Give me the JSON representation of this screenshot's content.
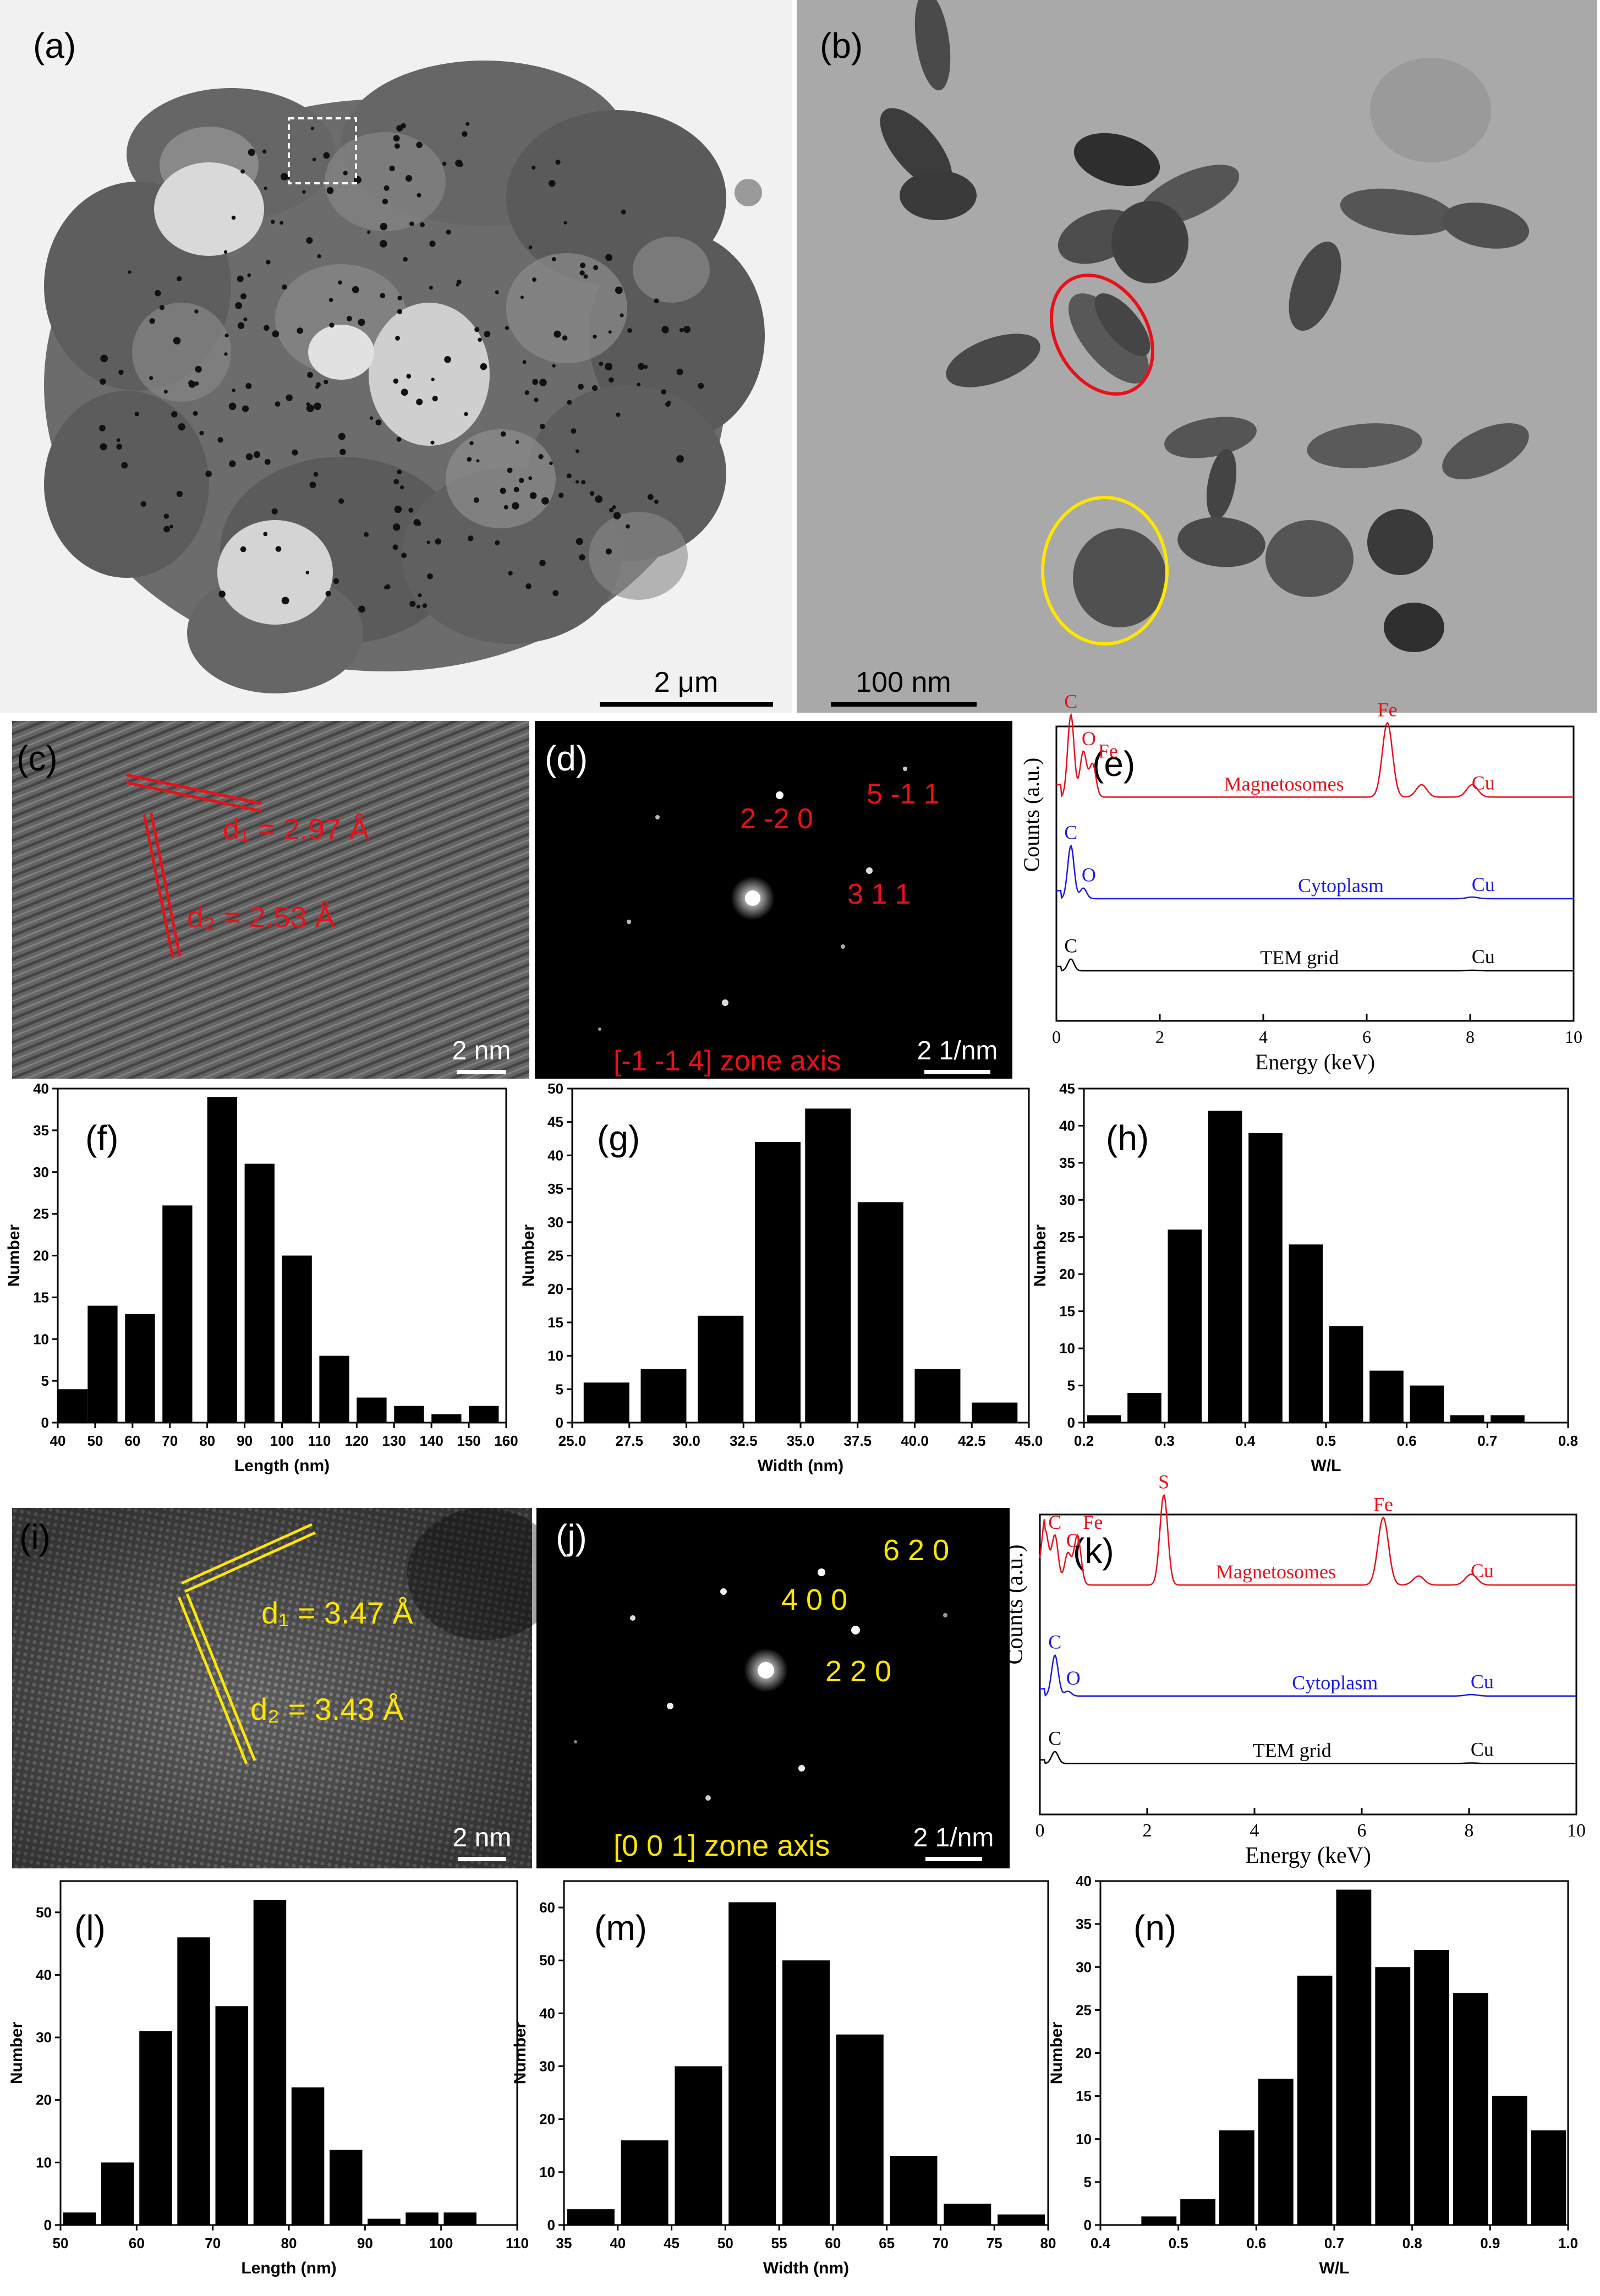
{
  "panels": {
    "a": {
      "label": "(a)",
      "scale_bar": "2 μm"
    },
    "b": {
      "label": "(b)",
      "scale_bar": "100 nm"
    },
    "c": {
      "label": "(c)",
      "d1": "d₁ = 2.97 Å",
      "d2": "d₂ = 2.53 Å",
      "scale_bar": "2 nm"
    },
    "d": {
      "label": "(d)",
      "spots": [
        "2 -2 0",
        "5 -1 1",
        "3 1 1"
      ],
      "zone_axis": "[-1 -1 4] zone axis",
      "scale_bar": "2 1/nm"
    },
    "e": {
      "label": "(e)"
    },
    "f": {
      "label": "(f)"
    },
    "g": {
      "label": "(g)"
    },
    "h": {
      "label": "(h)"
    },
    "i": {
      "label": "(i)",
      "d1": "d₁ = 3.47 Å",
      "d2": "d₂ = 3.43 Å",
      "scale_bar": "2 nm"
    },
    "j": {
      "label": "(j)",
      "spots": [
        "6 2 0",
        "4 0 0",
        "2 2 0"
      ],
      "zone_axis": "[0 0 1] zone axis",
      "scale_bar": "2 1/nm"
    },
    "k": {
      "label": "(k)"
    },
    "l": {
      "label": "(l)"
    },
    "m": {
      "label": "(m)"
    },
    "n": {
      "label": "(n)"
    }
  },
  "colors": {
    "red": "#e8101a",
    "yellow": "#ffe600",
    "blue": "#1a1ae0",
    "black": "#000000"
  },
  "chart_data": [
    {
      "id": "e",
      "type": "line",
      "xlabel": "Energy (keV)",
      "ylabel": "Counts (a.u.)",
      "xlim": [
        0,
        10
      ],
      "xticks": [
        0,
        2,
        4,
        6,
        8,
        10
      ],
      "series": [
        {
          "name": "Magnetosomes",
          "color": "#e8101a",
          "peaks": [
            {
              "label": "C",
              "x": 0.28,
              "h": 1.0
            },
            {
              "label": "O",
              "x": 0.52,
              "h": 0.55
            },
            {
              "label": "Fe",
              "x": 0.7,
              "h": 0.4
            },
            {
              "label": "Fe",
              "x": 6.4,
              "h": 0.9
            },
            {
              "label": "Cu",
              "x": 8.04,
              "h": 0.15
            }
          ],
          "extra": [
            {
              "x": 7.06,
              "h": 0.15
            }
          ]
        },
        {
          "name": "Cytoplasm",
          "color": "#1a1ae0",
          "peaks": [
            {
              "label": "C",
              "x": 0.28,
              "h": 1.0
            },
            {
              "label": "O",
              "x": 0.52,
              "h": 0.2
            },
            {
              "label": "Cu",
              "x": 8.04,
              "h": 0.03
            }
          ],
          "extra": []
        },
        {
          "name": "TEM grid",
          "color": "#000000",
          "peaks": [
            {
              "label": "C",
              "x": 0.28,
              "h": 0.4
            },
            {
              "label": "Cu",
              "x": 8.04,
              "h": 0.02
            }
          ],
          "extra": []
        }
      ]
    },
    {
      "id": "f",
      "type": "bar",
      "xlabel": "Length (nm)",
      "ylabel": "Number",
      "xlim": [
        40,
        160
      ],
      "xticks": [
        40,
        50,
        60,
        70,
        80,
        90,
        100,
        110,
        120,
        130,
        140,
        150,
        160
      ],
      "ylim": [
        0,
        40
      ],
      "yticks": [
        0,
        5,
        10,
        15,
        20,
        25,
        30,
        35,
        40
      ],
      "bin_width": 8,
      "x": [
        44,
        52,
        62,
        72,
        84,
        94,
        104,
        114,
        124,
        134,
        144,
        154
      ],
      "values": [
        4,
        14,
        13,
        26,
        39,
        31,
        20,
        8,
        3,
        2,
        1,
        2
      ]
    },
    {
      "id": "g",
      "type": "bar",
      "xlabel": "Width (nm)",
      "ylabel": "Number",
      "xlim": [
        25,
        45
      ],
      "xticks": [
        25.0,
        27.5,
        30.0,
        32.5,
        35.0,
        37.5,
        40.0,
        42.5,
        45.0
      ],
      "ylim": [
        0,
        50
      ],
      "yticks": [
        0,
        5,
        10,
        15,
        20,
        25,
        30,
        35,
        40,
        45,
        50
      ],
      "bin_width": 2,
      "x": [
        26.5,
        29,
        31.5,
        34,
        36.2,
        38.5,
        41,
        43.5
      ],
      "values": [
        6,
        8,
        16,
        42,
        47,
        33,
        8,
        3
      ]
    },
    {
      "id": "h",
      "type": "bar",
      "xlabel": "W/L",
      "ylabel": "Number",
      "xlim": [
        0.2,
        0.8
      ],
      "xticks": [
        0.2,
        0.3,
        0.4,
        0.5,
        0.6,
        0.7,
        0.8
      ],
      "ylim": [
        0,
        45
      ],
      "yticks": [
        0,
        5,
        10,
        15,
        20,
        25,
        30,
        35,
        40,
        45
      ],
      "bin_width": 0.042,
      "x": [
        0.225,
        0.275,
        0.325,
        0.375,
        0.425,
        0.475,
        0.525,
        0.575,
        0.625,
        0.675,
        0.725
      ],
      "values": [
        1,
        4,
        26,
        42,
        39,
        24,
        13,
        7,
        5,
        1,
        1
      ]
    },
    {
      "id": "k",
      "type": "line",
      "xlabel": "Energy (keV)",
      "ylabel": "Counts (a.u.)",
      "xlim": [
        0,
        10
      ],
      "xticks": [
        0,
        2,
        4,
        6,
        8,
        10
      ],
      "series": [
        {
          "name": "Magnetosomes",
          "color": "#e8101a",
          "peaks": [
            {
              "label": "C",
              "x": 0.28,
              "h": 0.55
            },
            {
              "label": "O",
              "x": 0.52,
              "h": 0.35
            },
            {
              "label": "Fe",
              "x": 0.7,
              "h": 0.55
            },
            {
              "label": "S",
              "x": 2.31,
              "h": 1.0
            },
            {
              "label": "Fe",
              "x": 6.4,
              "h": 0.75
            },
            {
              "label": "Cu",
              "x": 8.04,
              "h": 0.12
            }
          ],
          "extra": [
            {
              "x": 0.1,
              "h": 0.6
            },
            {
              "x": 7.06,
              "h": 0.1
            }
          ]
        },
        {
          "name": "Cytoplasm",
          "color": "#1a1ae0",
          "peaks": [
            {
              "label": "C",
              "x": 0.28,
              "h": 0.85
            },
            {
              "label": "O",
              "x": 0.52,
              "h": 0.1
            },
            {
              "label": "Cu",
              "x": 8.04,
              "h": 0.03
            }
          ],
          "extra": []
        },
        {
          "name": "TEM grid",
          "color": "#000000",
          "peaks": [
            {
              "label": "C",
              "x": 0.28,
              "h": 0.5
            },
            {
              "label": "Cu",
              "x": 8.04,
              "h": 0.02
            }
          ],
          "extra": []
        }
      ]
    },
    {
      "id": "l",
      "type": "bar",
      "xlabel": "Length (nm)",
      "ylabel": "Number",
      "xlim": [
        50,
        110
      ],
      "xticks": [
        50,
        60,
        70,
        80,
        90,
        100,
        110
      ],
      "ylim": [
        0,
        55
      ],
      "yticks": [
        0,
        10,
        20,
        30,
        40,
        50
      ],
      "bin_width": 4.3,
      "x": [
        52.5,
        57.5,
        62.5,
        67.5,
        72.5,
        77.5,
        82.5,
        87.5,
        92.5,
        97.5,
        102.5
      ],
      "values": [
        2,
        10,
        31,
        46,
        35,
        52,
        22,
        12,
        1,
        2,
        2
      ]
    },
    {
      "id": "m",
      "type": "bar",
      "xlabel": "Width (nm)",
      "ylabel": "Number",
      "xlim": [
        35,
        80
      ],
      "xticks": [
        35,
        40,
        45,
        50,
        55,
        60,
        65,
        70,
        75,
        80
      ],
      "ylim": [
        0,
        65
      ],
      "yticks": [
        0,
        10,
        20,
        30,
        40,
        50,
        60
      ],
      "bin_width": 4.4,
      "x": [
        37.5,
        42.5,
        47.5,
        52.5,
        57.5,
        62.5,
        67.5,
        72.5,
        77.5
      ],
      "values": [
        3,
        16,
        30,
        61,
        50,
        36,
        13,
        4,
        2
      ]
    },
    {
      "id": "n",
      "type": "bar",
      "xlabel": "W/L",
      "ylabel": "Number",
      "xlim": [
        0.4,
        1.0
      ],
      "xticks": [
        0.4,
        0.5,
        0.6,
        0.7,
        0.8,
        0.9,
        1.0
      ],
      "ylim": [
        0,
        40
      ],
      "yticks": [
        0,
        5,
        10,
        15,
        20,
        25,
        30,
        35,
        40
      ],
      "bin_width": 0.045,
      "x": [
        0.475,
        0.525,
        0.575,
        0.625,
        0.675,
        0.725,
        0.775,
        0.825,
        0.875,
        0.925,
        0.975
      ],
      "values": [
        1,
        3,
        11,
        17,
        29,
        39,
        30,
        32,
        27,
        15,
        11
      ]
    }
  ]
}
